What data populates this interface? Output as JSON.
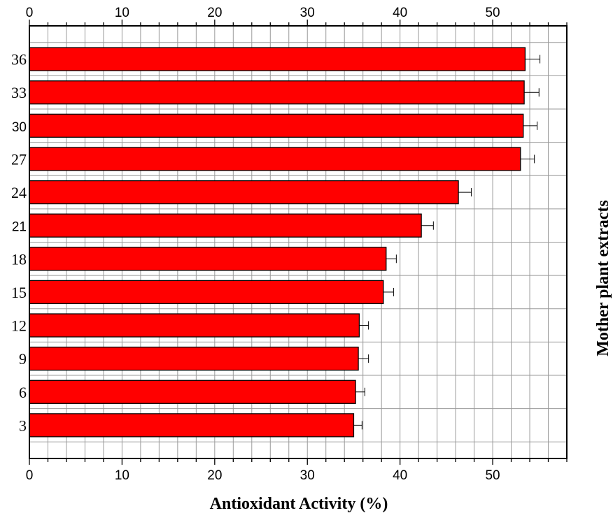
{
  "chart_data": {
    "type": "bar",
    "orientation": "horizontal",
    "categories": [
      "36",
      "33",
      "30",
      "27",
      "24",
      "21",
      "18",
      "15",
      "12",
      "9",
      "6",
      "3"
    ],
    "values": [
      53.5,
      53.4,
      53.3,
      53.0,
      46.3,
      42.3,
      38.5,
      38.2,
      35.6,
      35.5,
      35.2,
      35.0
    ],
    "errors": [
      1.6,
      1.6,
      1.5,
      1.5,
      1.4,
      1.3,
      1.1,
      1.1,
      1.0,
      1.1,
      1.0,
      0.9
    ],
    "xlabel": "Antioxidant Activity (%)",
    "ylabel": "Mother plant extracts",
    "xlim": [
      0,
      58
    ],
    "xticks": [
      0,
      10,
      20,
      30,
      40,
      50
    ],
    "x_top_ticks_shown": true,
    "grid": true,
    "bar_color": "#ff0000",
    "bar_edge_color": "#000000"
  }
}
